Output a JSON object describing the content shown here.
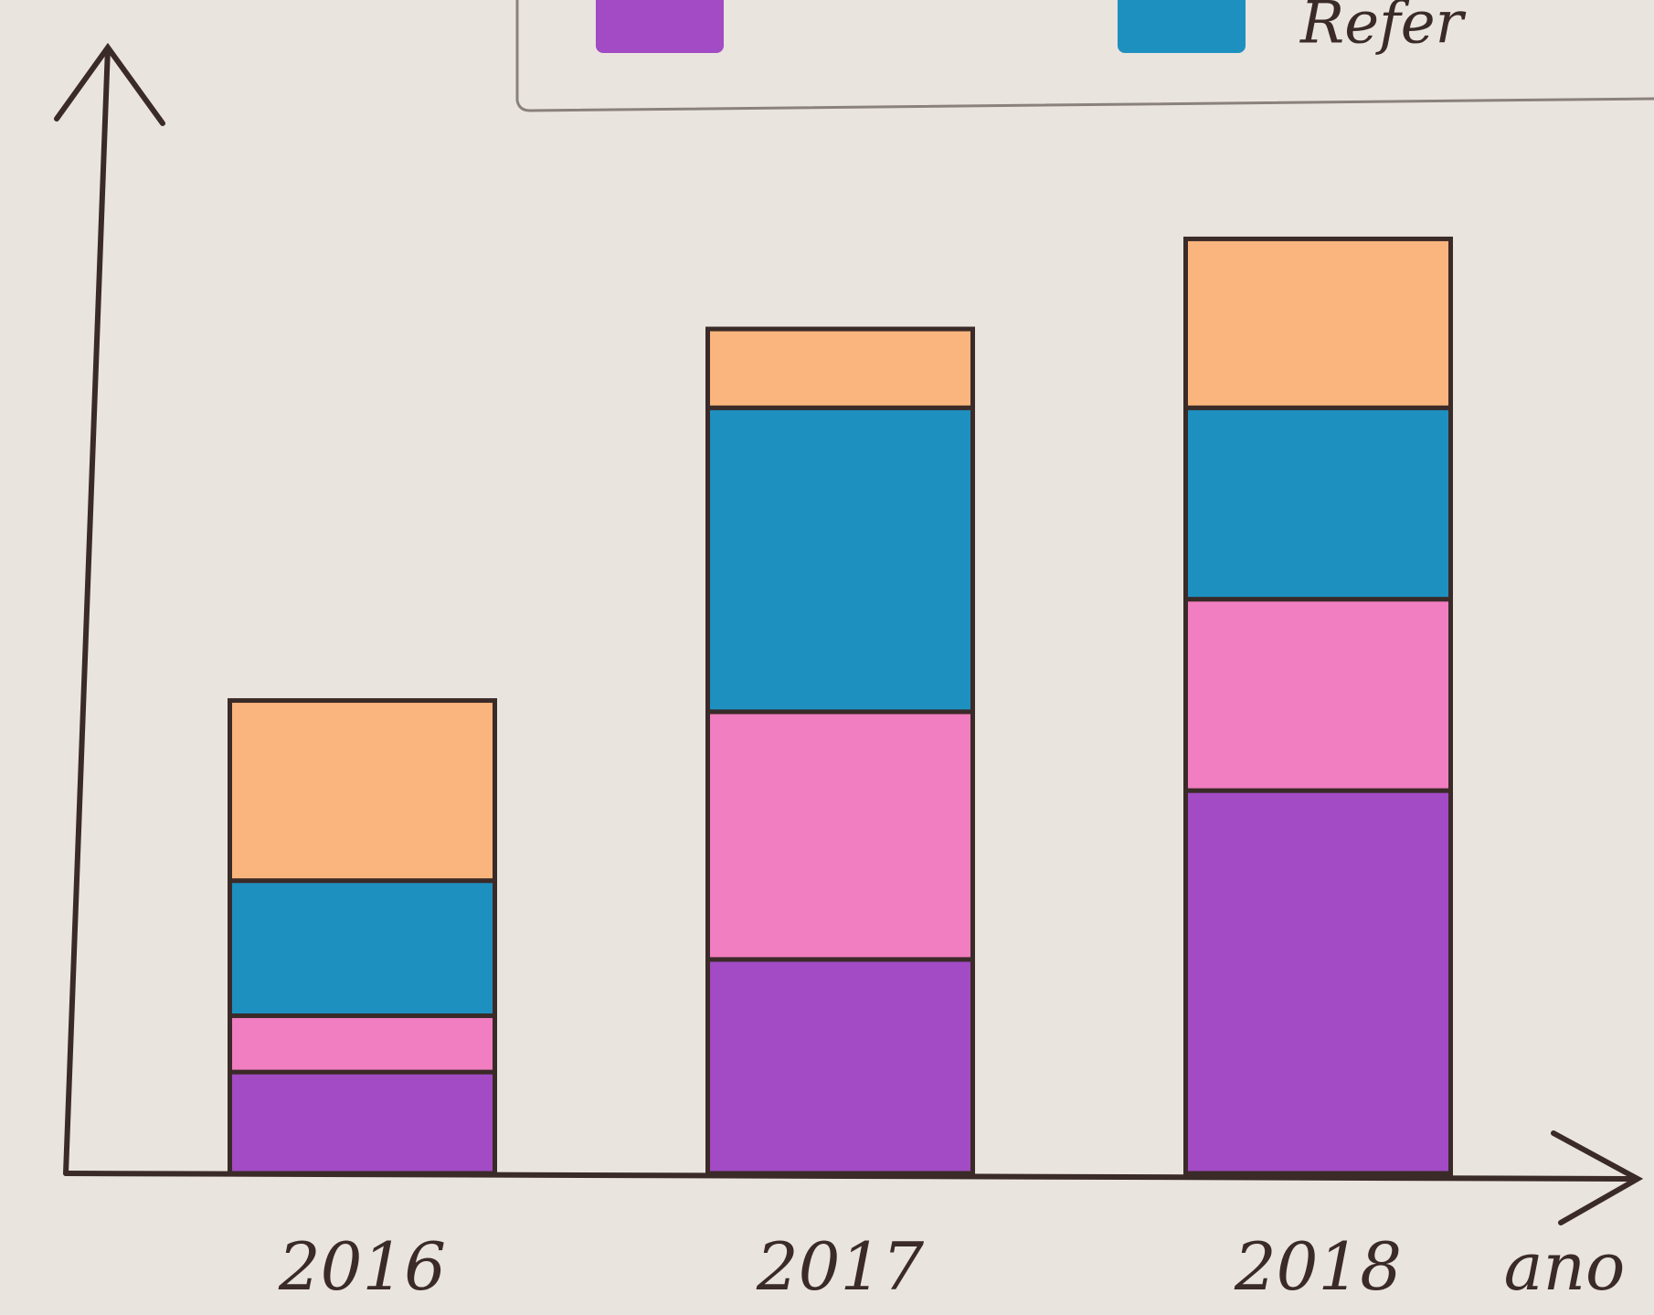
{
  "chart_data": {
    "type": "stacked_bar",
    "x_label": "ano",
    "categories": [
      "2016",
      "2017",
      "2018"
    ],
    "series": [
      {
        "color": "#a24bc4",
        "values": [
          9,
          19,
          34
        ]
      },
      {
        "color": "#f07ec0",
        "values": [
          5,
          22,
          17
        ]
      },
      {
        "name": "Refer",
        "color": "#1e90c0",
        "values": [
          12,
          27,
          17
        ]
      },
      {
        "color": "#f9b57d",
        "values": [
          16,
          7,
          15
        ]
      }
    ],
    "ylim": [
      0,
      100
    ],
    "legend": "top-right"
  }
}
